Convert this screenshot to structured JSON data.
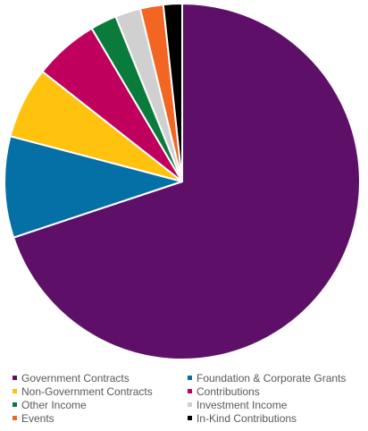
{
  "chart_data": {
    "type": "pie",
    "title": "",
    "legend_position": "bottom",
    "categories": [
      "Government Contracts",
      "Foundation & Corporate Grants",
      "Non-Government Contracts",
      "Contributions",
      "Other Income",
      "Investment Income",
      "Events",
      "In-Kind Contributions"
    ],
    "values": [
      69.9,
      9.2,
      6.5,
      5.9,
      2.4,
      2.3,
      2.1,
      1.7
    ],
    "unit": "%",
    "colors": [
      "#5e1069",
      "#0570a5",
      "#ffc20e",
      "#c0005d",
      "#0b7b3c",
      "#d0d0d0",
      "#f26522",
      "#000000"
    ]
  }
}
